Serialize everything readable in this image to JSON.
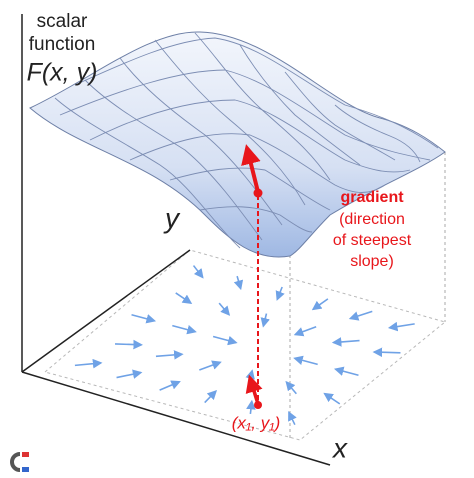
{
  "title_lines": [
    "scalar",
    "function"
  ],
  "function_label": "F(x, y)",
  "axis_y": "y",
  "axis_x": "x",
  "gradient": {
    "label": "gradient",
    "description_lines": [
      "(direction",
      "of steepest",
      "slope)"
    ]
  },
  "point_label": "(x₁, y₁)"
}
